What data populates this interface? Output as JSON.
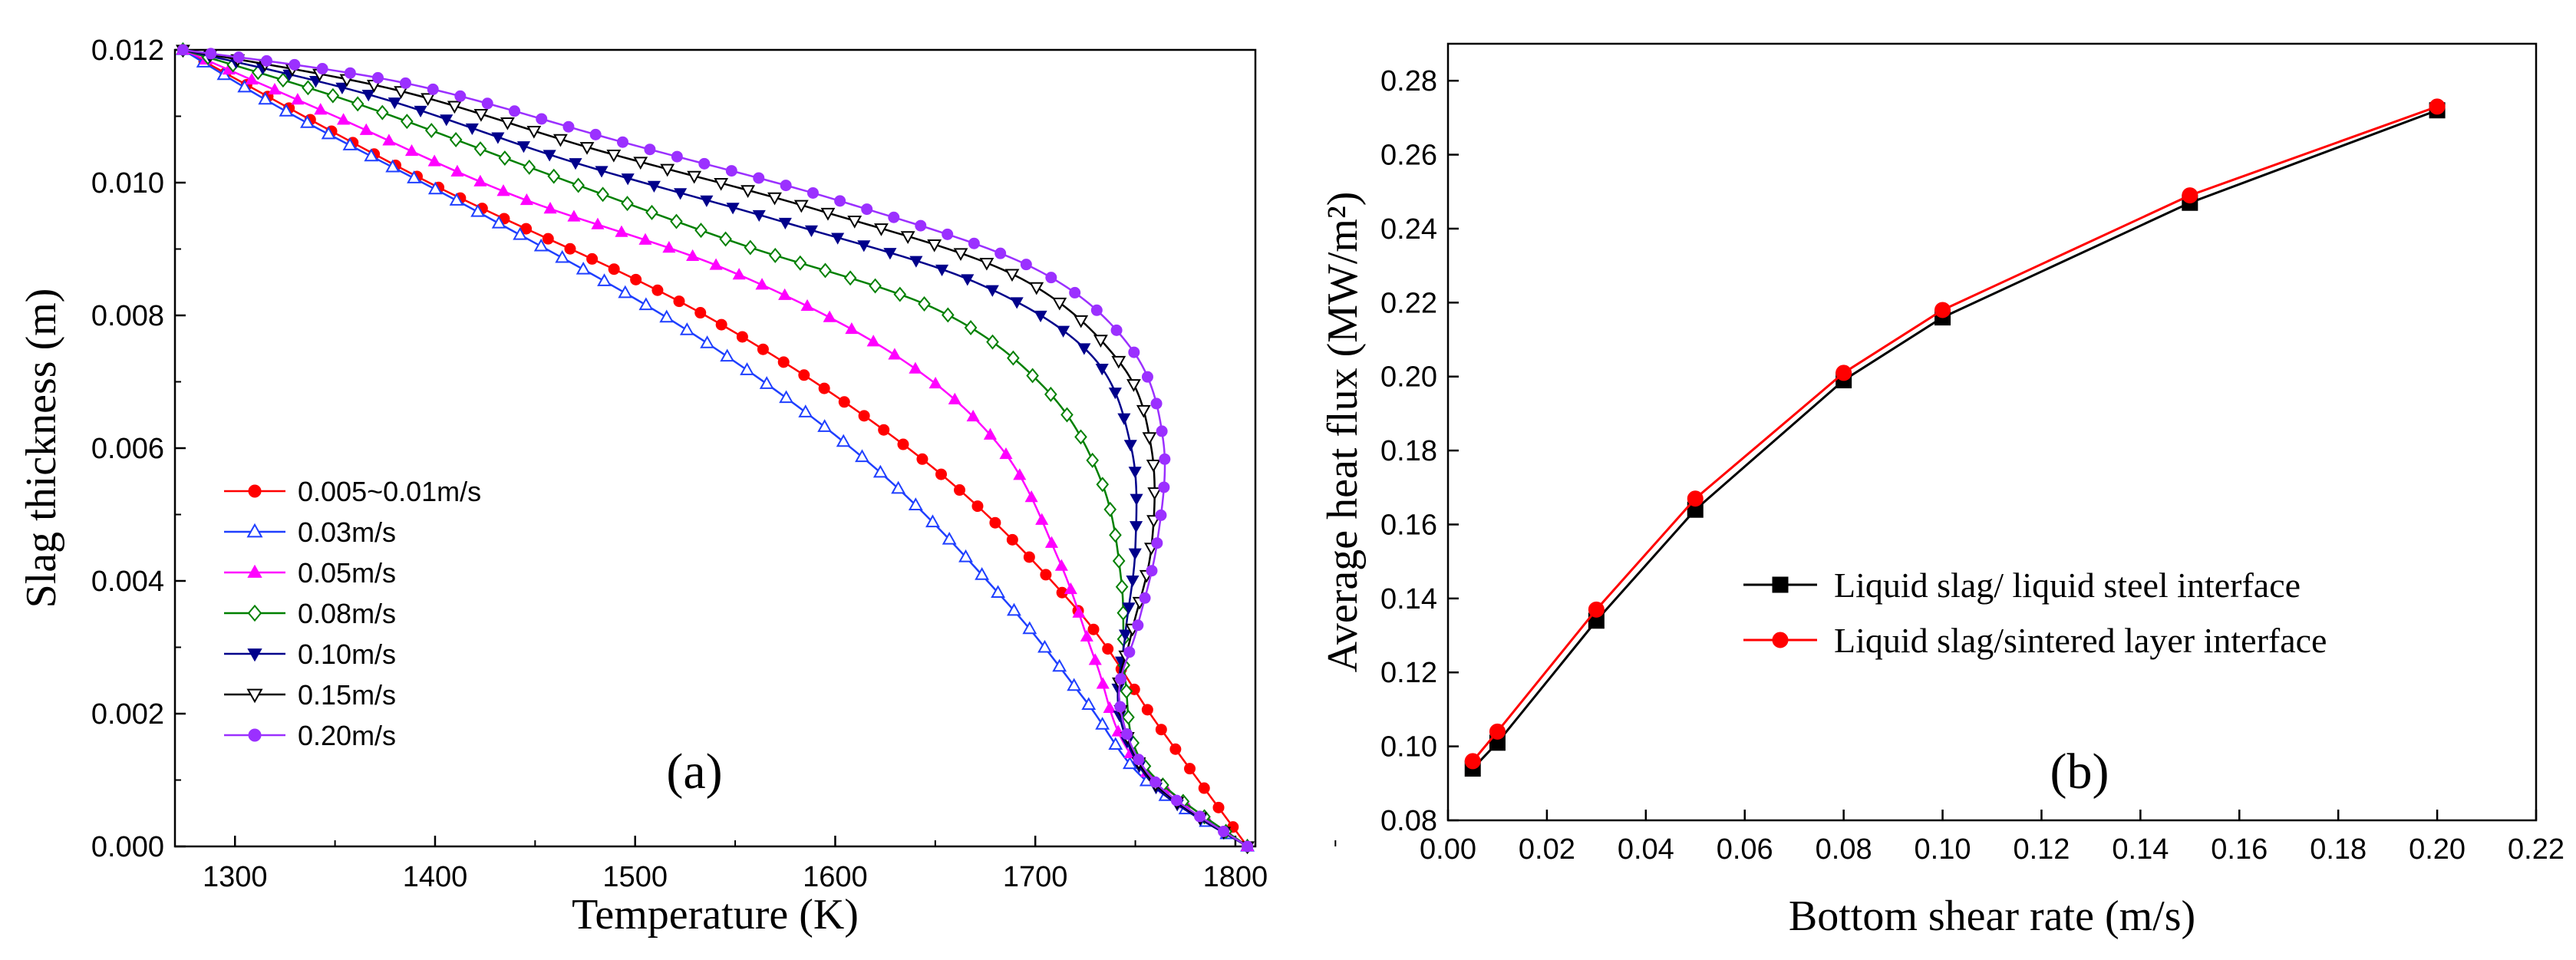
{
  "chart_data": [
    {
      "type": "line",
      "panel_label": "(a)",
      "xlabel": "Temperature (K)",
      "ylabel": "Slag thickness (m)",
      "xlim": [
        1270,
        1810
      ],
      "ylim": [
        0.0,
        0.012
      ],
      "xticks": [
        1300,
        1400,
        1500,
        1600,
        1700,
        1800
      ],
      "yticks": [
        0.0,
        0.002,
        0.004,
        0.006,
        0.008,
        0.01,
        0.012
      ],
      "xtick_labels": [
        "1300",
        "1400",
        "1500",
        "1600",
        "1700",
        "1800"
      ],
      "ytick_labels": [
        "0.000",
        "0.002",
        "0.004",
        "0.006",
        "0.008",
        "0.010",
        "0.012"
      ],
      "legend_position": "lower-left",
      "series": [
        {
          "name": "0.005~0.01m/s",
          "color": "#ff0000",
          "marker": "circle",
          "filled": true,
          "points": [
            [
              1274,
              0.012
            ],
            [
              1397,
              0.01
            ],
            [
              1535,
              0.008
            ],
            [
              1645,
              0.0058
            ],
            [
              1720,
              0.0036
            ],
            [
              1762,
              0.0018
            ],
            [
              1806,
              0.0
            ]
          ]
        },
        {
          "name": "0.03m/s",
          "color": "#1f3fff",
          "marker": "triangle-up",
          "filled": false,
          "points": [
            [
              1274,
              0.012
            ],
            [
              1330,
              0.011
            ],
            [
              1425,
              0.0095
            ],
            [
              1530,
              0.0077
            ],
            [
              1620,
              0.0057
            ],
            [
              1685,
              0.0037
            ],
            [
              1725,
              0.0022
            ],
            [
              1755,
              0.001
            ],
            [
              1806,
              0.0
            ]
          ]
        },
        {
          "name": "0.05m/s",
          "color": "#ff00ff",
          "marker": "triangle-up",
          "filled": true,
          "points": [
            [
              1274,
              0.012
            ],
            [
              1350,
              0.011
            ],
            [
              1440,
              0.0098
            ],
            [
              1545,
              0.0087
            ],
            [
              1630,
              0.0074
            ],
            [
              1683,
              0.006
            ],
            [
              1712,
              0.0043
            ],
            [
              1730,
              0.0028
            ],
            [
              1750,
              0.0013
            ],
            [
              1806,
              0.0
            ]
          ]
        },
        {
          "name": "0.08m/s",
          "color": "#008000",
          "marker": "diamond",
          "filled": false,
          "points": [
            [
              1274,
              0.012
            ],
            [
              1360,
              0.0112
            ],
            [
              1450,
              0.0102
            ],
            [
              1550,
              0.0091
            ],
            [
              1650,
              0.0081
            ],
            [
              1705,
              0.0069
            ],
            [
              1733,
              0.0055
            ],
            [
              1743,
              0.004
            ],
            [
              1745,
              0.0025
            ],
            [
              1755,
              0.0012
            ],
            [
              1806,
              0.0
            ]
          ]
        },
        {
          "name": "0.10m/s",
          "color": "#00008b",
          "marker": "triangle-down",
          "filled": true,
          "points": [
            [
              1274,
              0.012
            ],
            [
              1370,
              0.0113
            ],
            [
              1470,
              0.0103
            ],
            [
              1575,
              0.0094
            ],
            [
              1670,
              0.0085
            ],
            [
              1728,
              0.0074
            ],
            [
              1748,
              0.006
            ],
            [
              1750,
              0.0045
            ],
            [
              1745,
              0.0032
            ],
            [
              1742,
              0.002
            ],
            [
              1760,
              0.0009
            ],
            [
              1806,
              0.0
            ]
          ]
        },
        {
          "name": "0.15m/s",
          "color": "#000000",
          "marker": "triangle-down",
          "filled": false,
          "points": [
            [
              1274,
              0.012
            ],
            [
              1380,
              0.0114
            ],
            [
              1480,
              0.0105
            ],
            [
              1590,
              0.0096
            ],
            [
              1690,
              0.0086
            ],
            [
              1742,
              0.0073
            ],
            [
              1758,
              0.006
            ],
            [
              1758,
              0.0045
            ],
            [
              1748,
              0.0032
            ],
            [
              1742,
              0.0022
            ],
            [
              1758,
              0.001
            ],
            [
              1806,
              0.0
            ]
          ]
        },
        {
          "name": "0.20m/s",
          "color": "#9b30ff",
          "marker": "circle",
          "filled": true,
          "points": [
            [
              1274,
              0.012
            ],
            [
              1385,
              0.0115
            ],
            [
              1495,
              0.0106
            ],
            [
              1605,
              0.0097
            ],
            [
              1700,
              0.0087
            ],
            [
              1748,
              0.0075
            ],
            [
              1764,
              0.0061
            ],
            [
              1761,
              0.0046
            ],
            [
              1751,
              0.0033
            ],
            [
              1742,
              0.0022
            ],
            [
              1759,
              0.001
            ],
            [
              1806,
              0.0
            ]
          ]
        }
      ]
    },
    {
      "type": "line",
      "panel_label": "(b)",
      "xlabel": "Bottom shear rate (m/s)",
      "ylabel": "Average heat flux (MW/m²)",
      "xlim": [
        0.0,
        0.22
      ],
      "ylim": [
        0.08,
        0.29
      ],
      "xticks": [
        0.0,
        0.02,
        0.04,
        0.06,
        0.08,
        0.1,
        0.12,
        0.14,
        0.16,
        0.18,
        0.2,
        0.22
      ],
      "yticks": [
        0.08,
        0.1,
        0.12,
        0.14,
        0.16,
        0.18,
        0.2,
        0.22,
        0.24,
        0.26,
        0.28
      ],
      "xtick_labels": [
        "0.00",
        "0.02",
        "0.04",
        "0.06",
        "0.08",
        "0.10",
        "0.12",
        "0.14",
        "0.16",
        "0.18",
        "0.20",
        "0.22"
      ],
      "ytick_labels": [
        "0.08",
        "0.10",
        "0.12",
        "0.14",
        "0.16",
        "0.18",
        "0.20",
        "0.22",
        "0.24",
        "0.26",
        "0.28"
      ],
      "legend_position": "center-right",
      "x": [
        0.005,
        0.01,
        0.03,
        0.05,
        0.08,
        0.1,
        0.15,
        0.2
      ],
      "series": [
        {
          "name": "Liquid slag/ liquid steel interface",
          "color": "#000000",
          "marker": "square",
          "filled": true,
          "values": [
            0.094,
            0.101,
            0.134,
            0.164,
            0.199,
            0.216,
            0.247,
            0.272
          ]
        },
        {
          "name": "Liquid slag/sintered layer interface",
          "color": "#ff0000",
          "marker": "circle",
          "filled": true,
          "values": [
            0.096,
            0.104,
            0.137,
            0.167,
            0.201,
            0.218,
            0.249,
            0.273
          ]
        }
      ]
    }
  ]
}
